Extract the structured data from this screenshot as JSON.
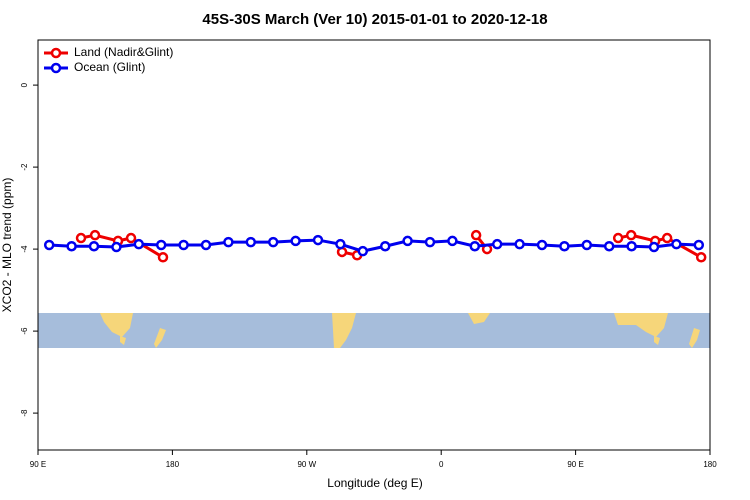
{
  "chart_data": {
    "type": "line",
    "title": "45S-30S March (Ver 10)   2015-01-01 to 2020-12-18",
    "xlabel": "Longitude (deg E)",
    "ylabel": "XCO2 - MLO trend (ppm)",
    "xlim": [
      90,
      540
    ],
    "ylim": [
      -8.9,
      1.1
    ],
    "xticks": [
      {
        "value": 90,
        "label": "90 E"
      },
      180,
      {
        "value": 270,
        "label": "90 W"
      },
      {
        "value": 360,
        "label": "0"
      },
      {
        "value": 450,
        "label": "90 E"
      },
      {
        "value": 540,
        "label": "180"
      }
    ],
    "yticks": [
      0,
      -2,
      -4,
      -6,
      -8
    ],
    "legend": "top-left",
    "series": [
      {
        "name": "Land (Nadir&Glint)",
        "color": "#ee0000",
        "x": [
          118.8,
          128.2,
          143.6,
          152.3,
          173.7,
          null,
          293.6,
          303.7,
          null,
          383.4,
          390.7,
          null,
          478.5,
          487.2,
          503.3,
          511.3,
          534.1
        ],
        "values": [
          -3.73,
          -3.66,
          -3.8,
          -3.73,
          -4.2,
          null,
          -4.07,
          -4.15,
          null,
          -3.66,
          -4.0,
          null,
          -3.73,
          -3.66,
          -3.8,
          -3.73,
          -4.2
        ]
      },
      {
        "name": "Ocean (Glint)",
        "color": "#0000ee",
        "x": [
          97.5,
          112.5,
          127.5,
          142.5,
          157.5,
          172.5,
          187.5,
          202.5,
          217.5,
          232.5,
          247.5,
          262.5,
          277.5,
          292.5,
          307.5,
          322.5,
          337.5,
          352.5,
          367.5,
          382.5,
          397.5,
          412.5,
          427.5,
          442.5,
          457.5,
          472.5,
          487.5,
          502.5,
          517.5,
          532.5
        ],
        "values": [
          -3.9,
          -3.93,
          -3.93,
          -3.95,
          -3.88,
          -3.9,
          -3.9,
          -3.9,
          -3.83,
          -3.83,
          -3.83,
          -3.8,
          -3.78,
          -3.88,
          -4.05,
          -3.93,
          -3.8,
          -3.83,
          -3.8,
          -3.93,
          -3.88,
          -3.88,
          -3.9,
          -3.93,
          -3.9,
          -3.93,
          -3.93,
          -3.95,
          -3.88,
          -3.9
        ]
      }
    ]
  }
}
